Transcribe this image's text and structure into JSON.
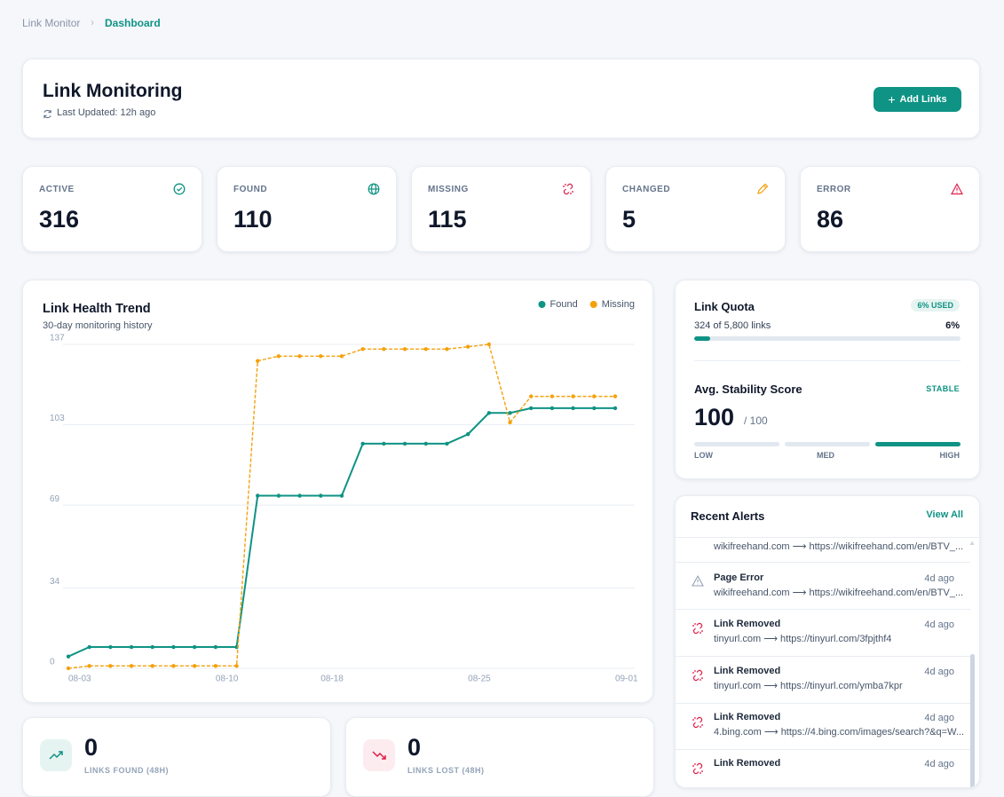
{
  "breadcrumb": [
    "Link Monitor",
    "Dashboard"
  ],
  "header": {
    "title": "Link Monitoring",
    "last_updated": "Last Updated: 12h ago",
    "button": "Add Links"
  },
  "stats": [
    {
      "label": "ACTIVE",
      "value": 316
    },
    {
      "label": "FOUND",
      "value": 110
    },
    {
      "label": "MISSING",
      "value": 115
    },
    {
      "label": "CHANGED",
      "value": 5
    },
    {
      "label": "ERROR",
      "value": 86
    }
  ],
  "trend_chart": {
    "type": "line",
    "title": "Link Health Trend",
    "subtitle": "30-day monitoring history",
    "categories": [
      "08-03",
      null,
      null,
      null,
      null,
      null,
      null,
      "08-10",
      null,
      null,
      null,
      null,
      "08-18",
      null,
      null,
      null,
      null,
      null,
      null,
      "08-25",
      null,
      null,
      null,
      null,
      null,
      null,
      "09-01"
    ],
    "series": [
      {
        "name": "Found",
        "color": "#0f9384",
        "dashed": false,
        "values": [
          5,
          9,
          9,
          9,
          9,
          9,
          9,
          9,
          9,
          73,
          73,
          73,
          73,
          73,
          95,
          95,
          95,
          95,
          95,
          99,
          108,
          108,
          110,
          110,
          110,
          110,
          110
        ]
      },
      {
        "name": "Missing",
        "color": "#f5a10b",
        "dashed": true,
        "values": [
          0,
          1,
          1,
          1,
          1,
          1,
          1,
          1,
          1,
          130,
          132,
          132,
          132,
          132,
          135,
          135,
          135,
          135,
          135,
          136,
          137,
          104,
          115,
          115,
          115,
          115,
          115
        ]
      }
    ],
    "ylim": [
      0,
      137
    ],
    "yticks": [
      0,
      34,
      69,
      103,
      137
    ],
    "grid": true,
    "legend": "top-right"
  },
  "quota": {
    "title": "Link Quota",
    "badge": "6% USED",
    "detail": "324 of 5,800 links",
    "percent": {
      "value": 6,
      "label": "6%"
    }
  },
  "stability": {
    "title": "Avg. Stability Score",
    "badge": "STABLE",
    "score": 100,
    "max_label": "/ 100",
    "levels": [
      "LOW",
      "MED",
      "HIGH"
    ]
  },
  "alerts": {
    "title": "Recent Alerts",
    "view_all": "View All",
    "items": [
      {
        "detail": "wikifreehand.com ⟶ https://wikifreehand.com/en/BTV_..."
      },
      {
        "title": "Page Error",
        "time": "4d ago",
        "detail": "wikifreehand.com ⟶ https://wikifreehand.com/en/BTV_..."
      },
      {
        "title": "Link Removed",
        "time": "4d ago",
        "detail": "tinyurl.com ⟶ https://tinyurl.com/3fpjthf4"
      },
      {
        "title": "Link Removed",
        "time": "4d ago",
        "detail": "tinyurl.com ⟶ https://tinyurl.com/ymba7kpr"
      },
      {
        "title": "Link Removed",
        "time": "4d ago",
        "detail": "4.bing.com ⟶ https://4.bing.com/images/search?&q=W..."
      },
      {
        "title": "Link Removed",
        "time": "4d ago"
      }
    ]
  },
  "summary": [
    {
      "value": 0,
      "label": "LINKS FOUND (48H)"
    },
    {
      "value": 0,
      "label": "LINKS LOST (48H)"
    }
  ]
}
